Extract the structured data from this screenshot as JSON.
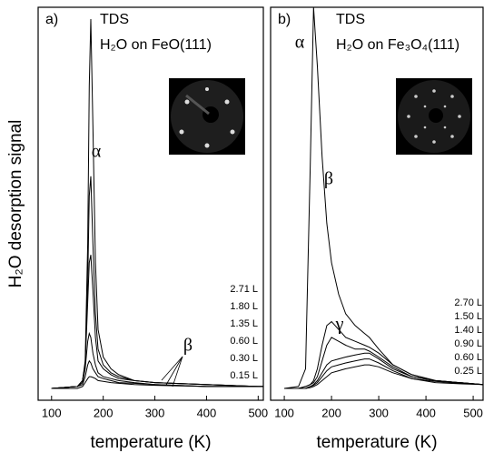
{
  "chart_data": [
    {
      "type": "line",
      "panel": "a)",
      "title": "TDS",
      "subtitle": "H₂O on FeO(111)",
      "ylabel": "H₂O desorption signal",
      "xlabel": "temperature (K)",
      "xlim": [
        74,
        510
      ],
      "xticks": [
        100,
        200,
        300,
        400,
        500
      ],
      "ylim": [
        0,
        100
      ],
      "annotations": [
        "α",
        "β"
      ],
      "x": [
        100,
        150,
        160,
        165,
        170,
        173,
        176,
        180,
        185,
        190,
        200,
        215,
        230,
        260,
        300,
        400,
        500,
        510
      ],
      "series": [
        {
          "name": "2.71 L",
          "color": "#000000",
          "values": [
            3,
            3.5,
            5,
            10,
            40,
            80,
            97,
            70,
            35,
            18,
            11,
            8,
            6.5,
            5,
            4.5,
            4,
            3.5,
            3.5
          ]
        },
        {
          "name": "1.80 L",
          "color": "#000000",
          "values": [
            3,
            3.5,
            5,
            9,
            30,
            52,
            57,
            40,
            22,
            13,
            9,
            7,
            6,
            5,
            4.5,
            4,
            3.5,
            3.5
          ]
        },
        {
          "name": "1.35 L",
          "color": "#000000",
          "values": [
            3,
            3.5,
            5,
            9,
            25,
            35,
            37,
            28,
            16,
            10,
            8,
            6.5,
            5.5,
            5,
            4.5,
            4,
            3.5,
            3.5
          ]
        },
        {
          "name": "0.60 L",
          "color": "#000000",
          "values": [
            3,
            3.5,
            4.5,
            8,
            15,
            17,
            16,
            12,
            9,
            7,
            6,
            5.5,
            5,
            4.5,
            4,
            3.5,
            3.5,
            3.5
          ]
        },
        {
          "name": "0.30 L",
          "color": "#000000",
          "values": [
            3,
            3.5,
            4,
            6,
            9,
            10,
            9.5,
            8,
            7,
            6,
            5.5,
            5,
            4.5,
            4.3,
            4,
            3.5,
            3.5,
            3.5
          ]
        },
        {
          "name": "0.15 L",
          "color": "#000000",
          "values": [
            3,
            3,
            3.5,
            4.5,
            5.5,
            6,
            6,
            5.8,
            5.5,
            5,
            4.8,
            4.5,
            4.3,
            4,
            3.8,
            3.5,
            3.5,
            3.5
          ]
        }
      ]
    },
    {
      "type": "line",
      "panel": "b)",
      "title": "TDS",
      "subtitle": "H₂O on Fe₃O₄(111)",
      "xlabel": "temperature (K)",
      "xlim": [
        71,
        521
      ],
      "xticks": [
        100,
        200,
        300,
        400,
        500
      ],
      "ylim": [
        0,
        100
      ],
      "annotations": [
        "α",
        "β",
        "γ"
      ],
      "x": [
        100,
        130,
        145,
        155,
        162,
        170,
        180,
        190,
        200,
        215,
        230,
        250,
        270,
        280,
        300,
        330,
        370,
        420,
        470,
        521
      ],
      "series": [
        {
          "name": "2.70 L",
          "color": "#000000",
          "values": [
            3,
            3.5,
            8,
            60,
            100,
            85,
            62,
            45,
            35,
            27,
            22,
            19,
            17,
            16,
            13,
            9,
            6.5,
            5,
            4.5,
            4
          ]
        },
        {
          "name": "1.50 L",
          "color": "#000000",
          "values": [
            3,
            3,
            3.5,
            4,
            5,
            8,
            14,
            19,
            20,
            18,
            16,
            15,
            14,
            13.5,
            12,
            9,
            6.5,
            5,
            4.5,
            4
          ]
        },
        {
          "name": "1.40 L",
          "color": "#000000",
          "values": [
            3,
            3,
            3.5,
            4,
            4.5,
            6,
            10,
            14,
            16,
            15,
            14,
            13,
            13,
            12.5,
            11,
            8.5,
            6,
            5,
            4.5,
            4
          ]
        },
        {
          "name": "0.90 L",
          "color": "#000000",
          "values": [
            3,
            3,
            3,
            3.5,
            4,
            5,
            7,
            9,
            10,
            10.5,
            11,
            11.5,
            12,
            12,
            10.5,
            8,
            6,
            5,
            4.5,
            4
          ]
        },
        {
          "name": "0.60 L",
          "color": "#000000",
          "values": [
            3,
            3,
            3,
            3.5,
            3.8,
            4.5,
            6,
            7.5,
            8.5,
            9,
            9.5,
            10,
            10.5,
            10.5,
            9.5,
            7.5,
            5.5,
            4.8,
            4.3,
            4
          ]
        },
        {
          "name": "0.25 L",
          "color": "#000000",
          "values": [
            3,
            3,
            3,
            3.2,
            3.5,
            4,
            5,
            6,
            7,
            7.5,
            8,
            8.5,
            9,
            9,
            8.5,
            7,
            5.5,
            4.5,
            4.2,
            4
          ]
        }
      ]
    }
  ]
}
